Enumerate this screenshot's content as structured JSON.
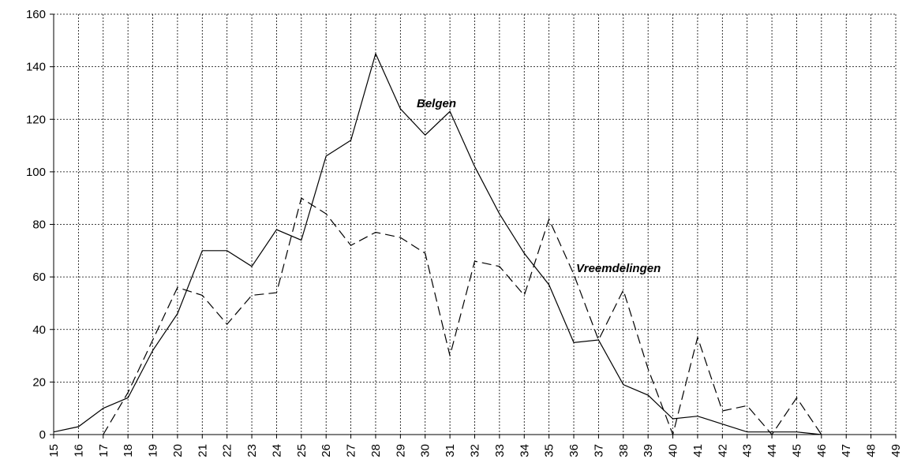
{
  "chart_data": {
    "type": "line",
    "categories": [
      "15",
      "16",
      "17",
      "18",
      "19",
      "20",
      "21",
      "22",
      "23",
      "24",
      "25",
      "26",
      "27",
      "28",
      "29",
      "30",
      "31",
      "32",
      "33",
      "34",
      "35",
      "36",
      "37",
      "38",
      "39",
      "40",
      "41",
      "42",
      "43",
      "44",
      "45",
      "46",
      "47",
      "48",
      "49"
    ],
    "series": [
      {
        "name": "Belgen",
        "color": "#000000",
        "dash": "solid",
        "values": [
          1,
          3,
          10,
          14,
          32,
          46,
          70,
          70,
          64,
          78,
          74,
          106,
          112,
          145,
          124,
          114,
          123,
          102,
          84,
          69,
          57,
          35,
          36,
          19,
          15,
          6,
          7,
          4,
          1,
          1,
          1,
          0,
          null,
          null,
          null
        ]
      },
      {
        "name": "Vreemdelingen",
        "color": "#000000",
        "dash": "dashed",
        "values": [
          null,
          null,
          0,
          16,
          36,
          56,
          53,
          42,
          53,
          54,
          90,
          84,
          72,
          77,
          75,
          69,
          30,
          66,
          64,
          53,
          82,
          61,
          36,
          55,
          25,
          0,
          37,
          9,
          11,
          0,
          14,
          0,
          null,
          null,
          null
        ]
      }
    ],
    "ylim": [
      0,
      160
    ],
    "yticks": [
      0,
      20,
      40,
      60,
      80,
      100,
      120,
      140,
      160
    ],
    "grid": true
  }
}
